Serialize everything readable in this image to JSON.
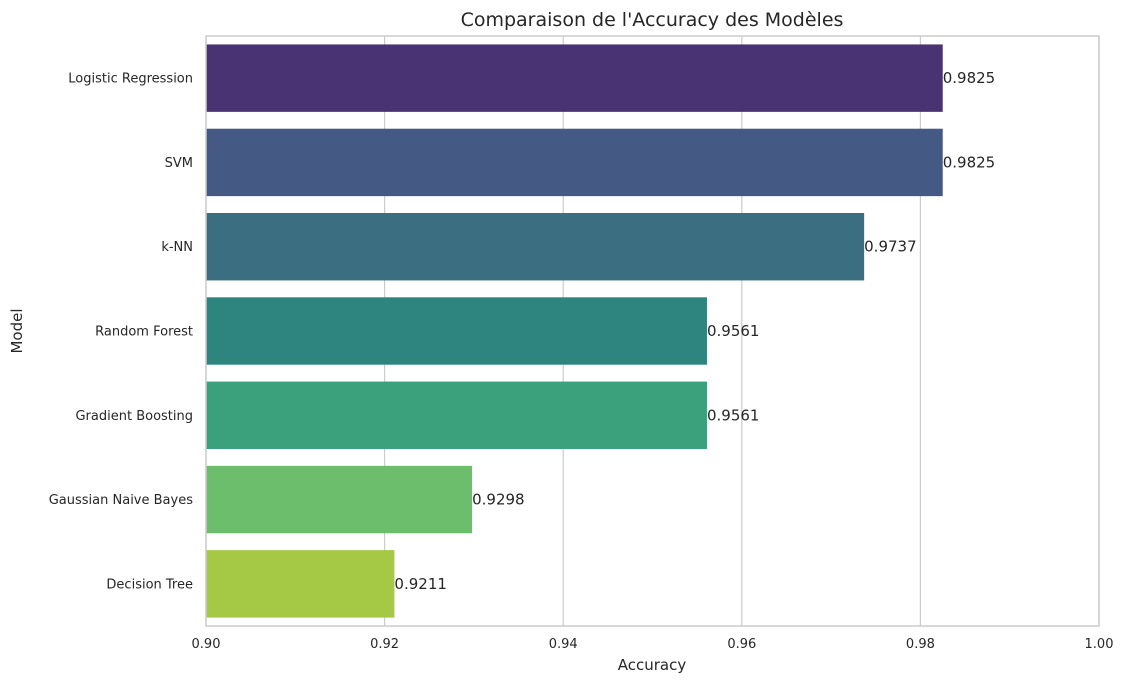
{
  "chart_data": {
    "type": "bar",
    "orientation": "horizontal",
    "title": "Comparaison de l'Accuracy des Modèles",
    "xlabel": "Accuracy",
    "ylabel": "Model",
    "xlim": [
      0.9,
      1.0
    ],
    "x_ticks": [
      0.9,
      0.92,
      0.94,
      0.96,
      0.98,
      1.0
    ],
    "x_tick_labels": [
      "0.90",
      "0.92",
      "0.94",
      "0.96",
      "0.98",
      "1.00"
    ],
    "grid": "vertical",
    "categories": [
      "Logistic Regression",
      "SVM",
      "k-NN",
      "Random Forest",
      "Gradient Boosting",
      "Gaussian Naive Bayes",
      "Decision Tree"
    ],
    "values": [
      0.9825,
      0.9825,
      0.9737,
      0.9561,
      0.9561,
      0.9298,
      0.9211
    ],
    "value_labels": [
      "0.9825",
      "0.9825",
      "0.9737",
      "0.9561",
      "0.9561",
      "0.9298",
      "0.9211"
    ],
    "colors": [
      "#4a3373",
      "#455985",
      "#3a6e80",
      "#2e8580",
      "#3ba17c",
      "#6cbd6c",
      "#a5c845"
    ]
  }
}
